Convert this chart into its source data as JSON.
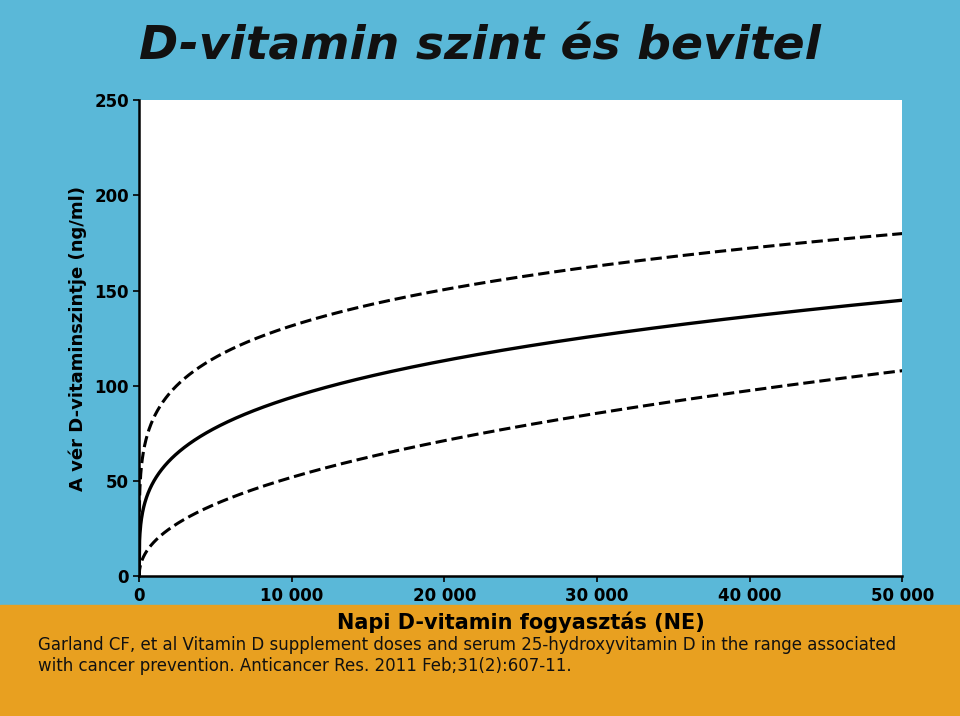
{
  "title": "D-vitamin szint és bevitel",
  "title_color": "#111111",
  "title_fontsize": 34,
  "ylabel": "A vér D-vitaminszintje (ng/ml)",
  "xlabel": "Napi D-vitamin fogyasztás (NE)",
  "xlabel_fontsize": 15,
  "ylabel_fontsize": 13,
  "xlim": [
    0,
    50000
  ],
  "ylim": [
    0,
    250
  ],
  "xticks": [
    0,
    10000,
    20000,
    30000,
    40000,
    50000
  ],
  "xtick_labels": [
    "0",
    "10 000",
    "20 000",
    "30 000",
    "40 000",
    "50 000"
  ],
  "yticks": [
    0,
    50,
    100,
    150,
    200,
    250
  ],
  "line_color": "#000000",
  "dash_color": "#000000",
  "sky_color": "#5ab8d8",
  "sand_color": "#e8a020",
  "plot_bg": "#ffffff",
  "citation": "Garland CF, et al Vitamin D supplement doses and serum 25-hydroxyvitamin D in the range associated\nwith cancer prevention. Anticancer Res. 2011 Feb;31(2):607-11.",
  "citation_fontsize": 12,
  "main_curve_a": 2.8,
  "main_curve_b": 0.42,
  "upper_curve_a": 4.5,
  "upper_curve_b": 0.4,
  "lower_curve_a": 1.5,
  "lower_curve_b": 0.44
}
